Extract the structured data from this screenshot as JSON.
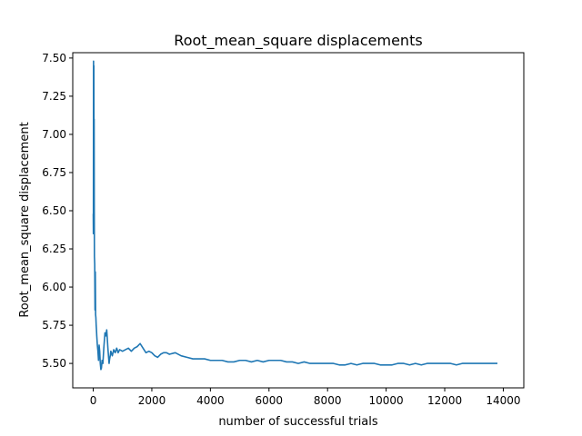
{
  "chart_data": {
    "type": "line",
    "title": "Root_mean_square displacements",
    "xlabel": "number of successful trials",
    "ylabel": "Root_mean_square displacement",
    "xlim": [
      -700,
      14700
    ],
    "ylim": [
      5.34,
      7.535
    ],
    "grid": false,
    "line_color": "#1f77b4",
    "x_ticks": [
      0,
      2000,
      4000,
      6000,
      8000,
      10000,
      12000,
      14000
    ],
    "x_tick_labels": [
      "0",
      "2000",
      "4000",
      "6000",
      "8000",
      "10000",
      "12000",
      "14000"
    ],
    "y_ticks": [
      5.5,
      5.75,
      6.0,
      6.25,
      6.5,
      6.75,
      7.0,
      7.25,
      7.5
    ],
    "y_tick_labels": [
      "5.50",
      "5.75",
      "6.00",
      "6.25",
      "6.50",
      "6.75",
      "7.00",
      "7.25",
      "7.50"
    ],
    "series": [
      {
        "x": [
          0,
          5,
          10,
          15,
          20,
          25,
          30,
          35,
          40,
          50,
          60,
          70,
          80,
          90,
          100,
          110,
          120,
          140,
          160,
          180,
          200,
          220,
          240,
          260,
          280,
          300,
          330,
          360,
          400,
          430,
          460,
          480,
          500,
          520,
          540,
          560,
          580,
          600,
          650,
          700,
          750,
          800,
          850,
          900,
          1000,
          1100,
          1200,
          1300,
          1400,
          1500,
          1600,
          1700,
          1800,
          1900,
          2000,
          2100,
          2200,
          2300,
          2400,
          2500,
          2600,
          2800,
          3000,
          3200,
          3400,
          3600,
          3800,
          4000,
          4200,
          4400,
          4600,
          4800,
          5000,
          5200,
          5400,
          5600,
          5800,
          6000,
          6200,
          6400,
          6600,
          6800,
          7000,
          7200,
          7400,
          7600,
          7800,
          8000,
          8200,
          8400,
          8600,
          8800,
          9000,
          9200,
          9400,
          9600,
          9800,
          10000,
          10200,
          10400,
          10600,
          10800,
          11000,
          11200,
          11400,
          11600,
          11800,
          12000,
          12200,
          12400,
          12600,
          12800,
          13000,
          13200,
          13400,
          13600,
          13800
        ],
        "y": [
          6.48,
          6.35,
          7.48,
          6.8,
          7.45,
          6.9,
          7.1,
          6.5,
          6.2,
          6.15,
          5.85,
          6.1,
          5.82,
          5.8,
          5.75,
          5.72,
          5.68,
          5.62,
          5.58,
          5.52,
          5.62,
          5.58,
          5.5,
          5.46,
          5.47,
          5.52,
          5.5,
          5.6,
          5.7,
          5.68,
          5.72,
          5.66,
          5.6,
          5.55,
          5.5,
          5.53,
          5.55,
          5.58,
          5.55,
          5.59,
          5.57,
          5.6,
          5.57,
          5.59,
          5.58,
          5.59,
          5.6,
          5.58,
          5.6,
          5.61,
          5.63,
          5.6,
          5.57,
          5.58,
          5.57,
          5.55,
          5.54,
          5.56,
          5.57,
          5.57,
          5.56,
          5.57,
          5.55,
          5.54,
          5.53,
          5.53,
          5.53,
          5.52,
          5.52,
          5.52,
          5.51,
          5.51,
          5.52,
          5.52,
          5.51,
          5.52,
          5.51,
          5.52,
          5.52,
          5.52,
          5.51,
          5.51,
          5.5,
          5.51,
          5.5,
          5.5,
          5.5,
          5.5,
          5.5,
          5.49,
          5.49,
          5.5,
          5.49,
          5.5,
          5.5,
          5.5,
          5.49,
          5.49,
          5.49,
          5.5,
          5.5,
          5.49,
          5.5,
          5.49,
          5.5,
          5.5,
          5.5,
          5.5,
          5.5,
          5.49,
          5.5,
          5.5,
          5.5,
          5.5,
          5.5,
          5.5,
          5.5
        ]
      }
    ]
  }
}
